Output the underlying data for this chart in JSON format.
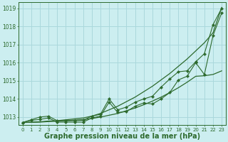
{
  "background_color": "#cceef0",
  "grid_color": "#aad8dc",
  "line_color": "#2d6a2d",
  "xlabel": "Graphe pression niveau de la mer (hPa)",
  "xlabel_fontsize": 7,
  "yticks": [
    1013,
    1014,
    1015,
    1016,
    1017,
    1018,
    1019
  ],
  "ylim": [
    1012.55,
    1019.35
  ],
  "xlim": [
    -0.5,
    23.5
  ],
  "xticks": [
    0,
    1,
    2,
    3,
    4,
    5,
    6,
    7,
    8,
    9,
    10,
    11,
    12,
    13,
    14,
    15,
    16,
    17,
    18,
    19,
    20,
    21,
    22,
    23
  ],
  "series_smooth_high": [
    1012.7,
    1012.72,
    1012.74,
    1012.78,
    1012.8,
    1012.85,
    1012.9,
    1012.95,
    1013.05,
    1013.2,
    1013.4,
    1013.6,
    1013.85,
    1014.1,
    1014.4,
    1014.7,
    1015.05,
    1015.4,
    1015.8,
    1016.2,
    1016.65,
    1017.1,
    1017.65,
    1019.05
  ],
  "series_smooth_low": [
    1012.7,
    1012.71,
    1012.72,
    1012.75,
    1012.77,
    1012.8,
    1012.83,
    1012.86,
    1012.92,
    1013.0,
    1013.1,
    1013.2,
    1013.35,
    1013.5,
    1013.68,
    1013.88,
    1014.1,
    1014.35,
    1014.62,
    1014.92,
    1015.25,
    1015.28,
    1015.35,
    1015.55
  ],
  "series_marked_high": [
    1012.7,
    1012.85,
    1013.0,
    1013.05,
    1012.8,
    1012.8,
    1012.8,
    1012.82,
    1013.05,
    1013.15,
    1014.0,
    1013.4,
    1013.55,
    1013.82,
    1014.0,
    1014.15,
    1014.65,
    1015.1,
    1015.5,
    1015.55,
    1016.05,
    1016.5,
    1018.1,
    1019.0
  ],
  "series_marked_low": [
    1012.7,
    1012.82,
    1012.87,
    1012.95,
    1012.72,
    1012.72,
    1012.72,
    1012.72,
    1012.95,
    1013.05,
    1013.82,
    1013.25,
    1013.3,
    1013.6,
    1013.78,
    1013.72,
    1014.0,
    1014.35,
    1015.05,
    1015.25,
    1016.0,
    1015.35,
    1017.5,
    1018.75
  ]
}
